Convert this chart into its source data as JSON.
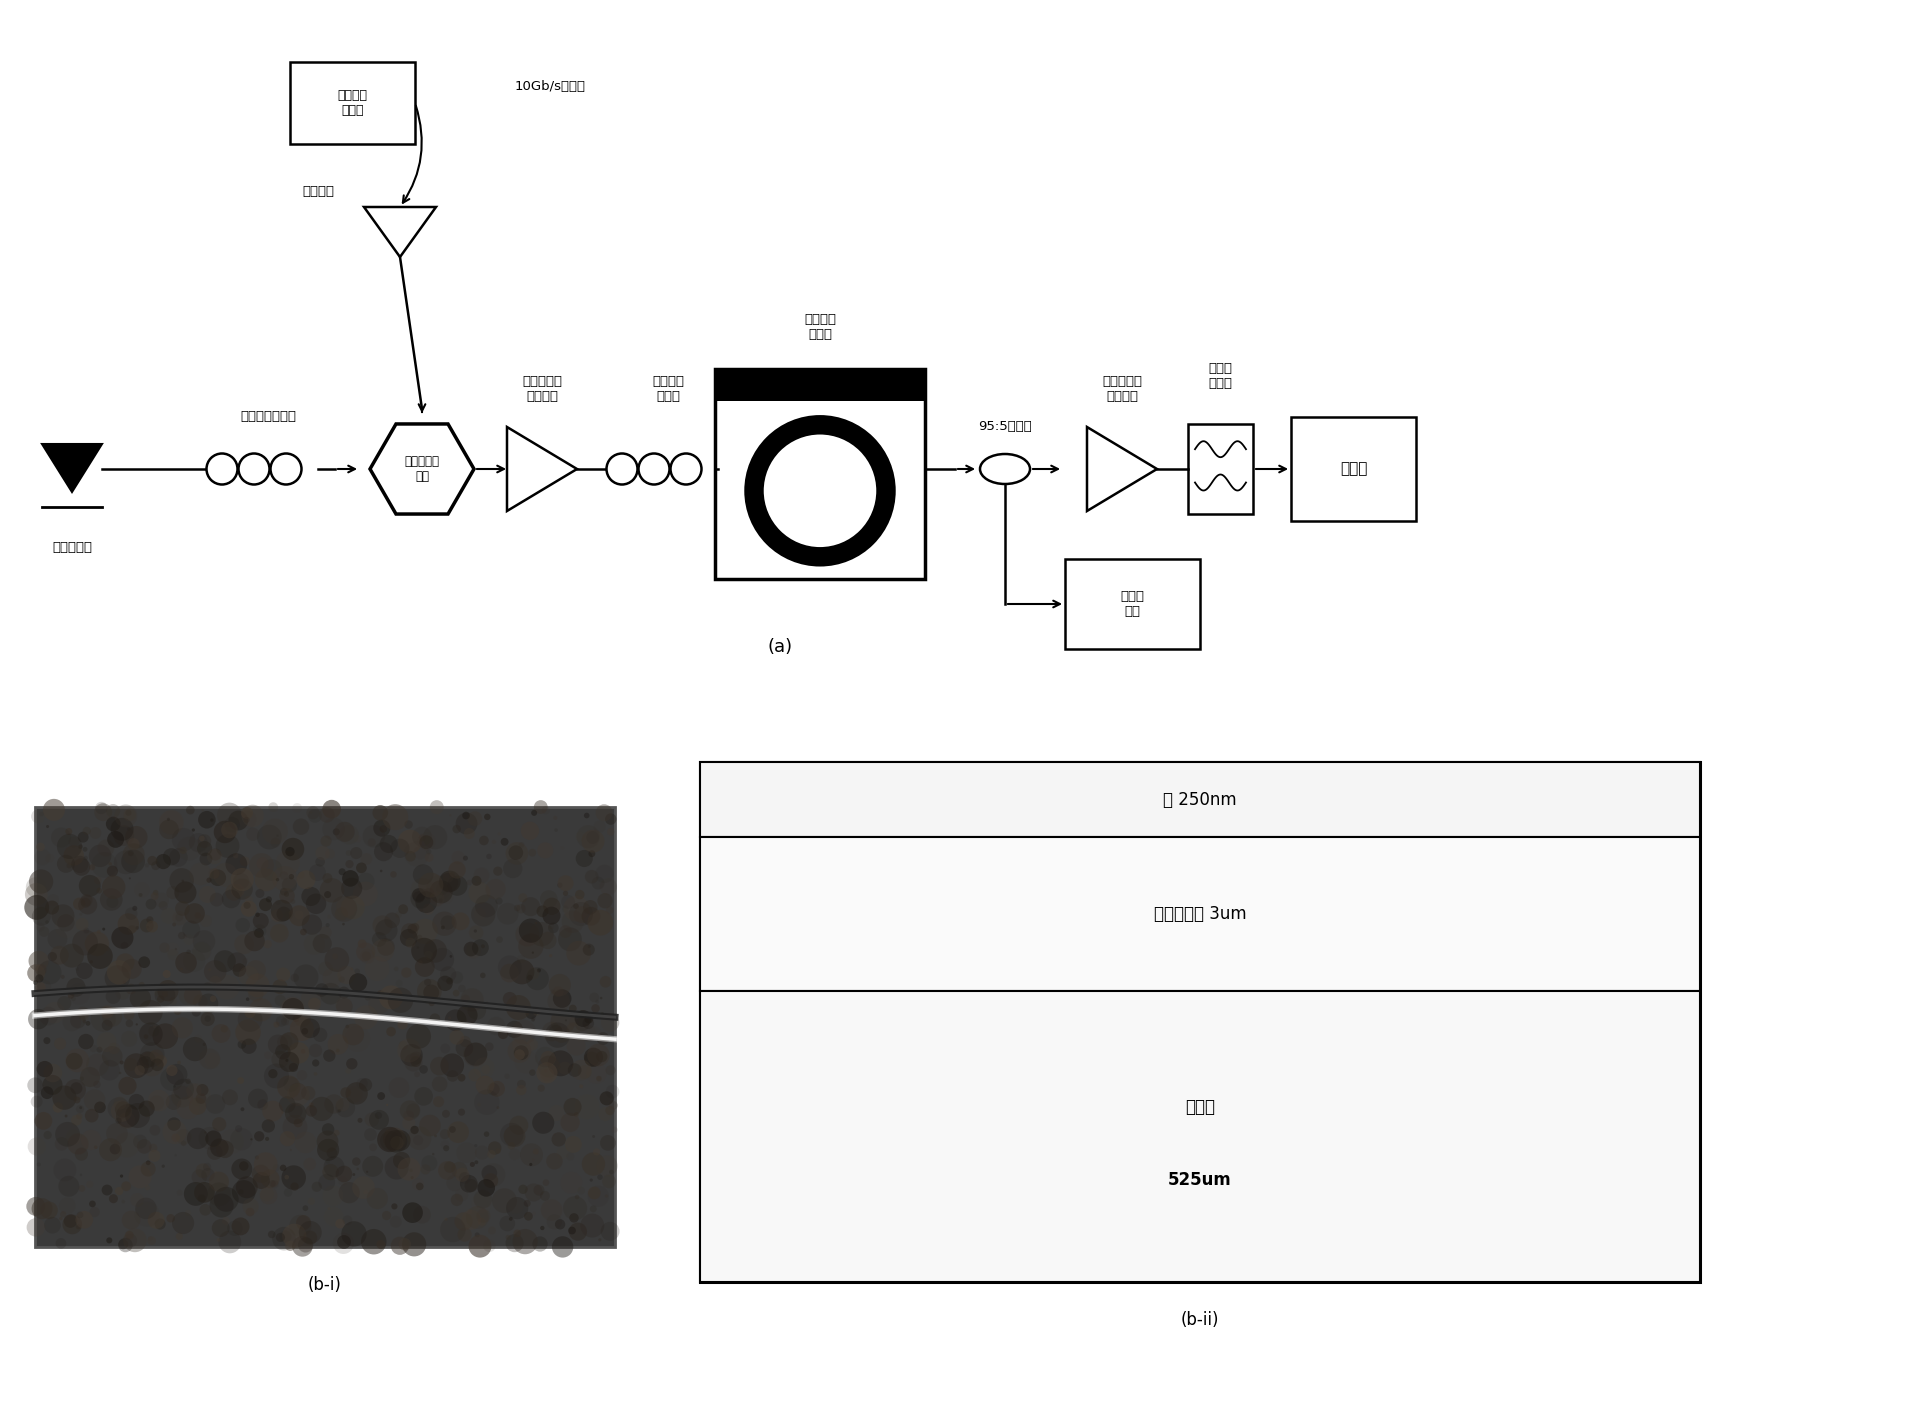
{
  "bg_color": "#ffffff",
  "title_a": "(a)",
  "title_bi": "(b-i)",
  "title_bii": "(b-ii)",
  "label_laser": "可调激光器",
  "label_pc1": "第一偏振控制器",
  "label_mzm": "马赫曾德调\n制器",
  "label_edfa1": "第一掺铒光\n纤放大器",
  "label_pc2": "第二偏振\n控制器",
  "label_ring": "硅基环形\n谐振腔",
  "label_splitter": "95:5功分器",
  "label_edfa2": "第二掺铒光\n纤放大器",
  "label_filter": "光带通\n滤波器",
  "label_osc": "示波器",
  "label_eamp": "电放大器",
  "label_sinegen": "正弦信号\n发生器",
  "label_10gb": "10Gb/s电信号",
  "label_power": "功率监\n控器",
  "layer1_text": "硅 250nm",
  "layer2_text": "二氧化硅层 3um",
  "layer3_text1": "硅衬底",
  "layer3_text2": "525um"
}
